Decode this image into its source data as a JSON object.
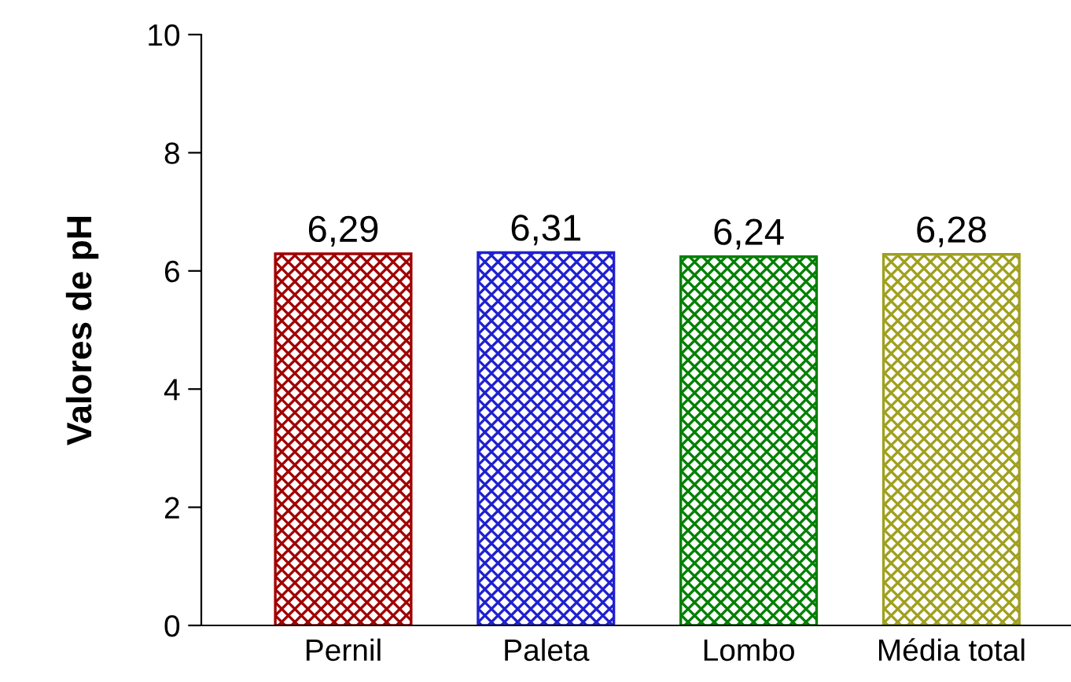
{
  "chart_data": {
    "type": "bar",
    "ylabel": "Valores de pH",
    "categories": [
      "Pernil",
      "Paleta",
      "Lombo",
      "Média total"
    ],
    "values": [
      6.29,
      6.31,
      6.24,
      6.28
    ],
    "colors": [
      "#a00000",
      "#2020d0",
      "#008000",
      "#a0a020"
    ],
    "value_labels": [
      "6,29",
      "6,31",
      "6,24",
      "6,28"
    ],
    "ylim": [
      0,
      10
    ],
    "yticks": [
      0,
      2,
      4,
      6,
      8,
      10
    ],
    "grid": false,
    "legend": false
  }
}
